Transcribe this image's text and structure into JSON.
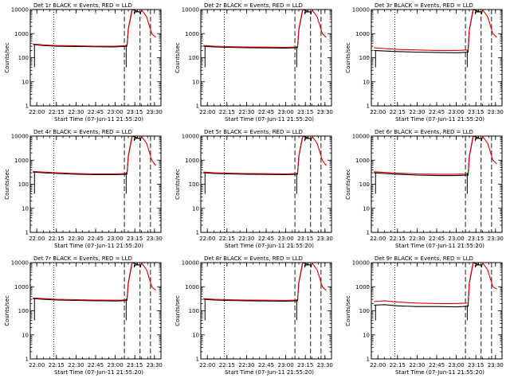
{
  "chart_data": [
    {
      "type": "line",
      "title": "Det 1r BLACK = Events, RED = LLD",
      "xlabel": "Start Time (07-Jun-11 21:55:20)",
      "ylabel": "Counts/sec",
      "ylim": [
        1,
        10000
      ],
      "yscale": "log",
      "xlim": [
        "21:55",
        "23:35"
      ],
      "xticks": [
        "22:00",
        "22:15",
        "22:30",
        "22:45",
        "23:00",
        "23:15",
        "23:30"
      ],
      "yticks": [
        "1",
        "10",
        "100",
        "1000",
        "10000"
      ],
      "series": [
        {
          "color": "#000000",
          "x": [
            "21:57",
            "22:05",
            "22:15",
            "22:30",
            "22:45",
            "23:00",
            "23:05",
            "23:09",
            "23:10",
            "23:13",
            "23:18",
            "23:20"
          ],
          "values": [
            350,
            320,
            300,
            290,
            285,
            280,
            290,
            300,
            1500,
            10000,
            8000,
            8000
          ]
        },
        {
          "color": "#e00000",
          "x": [
            "21:57",
            "22:05",
            "22:15",
            "22:30",
            "22:45",
            "23:00",
            "23:05",
            "23:09",
            "23:10",
            "23:13",
            "23:20",
            "23:24",
            "23:28",
            "23:31"
          ],
          "values": [
            370,
            340,
            320,
            310,
            300,
            300,
            310,
            320,
            1600,
            11000,
            10000,
            5000,
            1000,
            700
          ]
        }
      ]
    },
    {
      "type": "line",
      "title": "Det 2r BLACK = Events, RED = LLD",
      "xlabel": "Start Time (07-Jun-11 21:55:20)",
      "ylabel": "Counts/sec",
      "ylim": [
        1,
        10000
      ],
      "yscale": "log",
      "xlim": [
        "21:55",
        "23:35"
      ],
      "xticks": [
        "22:00",
        "22:15",
        "22:30",
        "22:45",
        "23:00",
        "23:15",
        "23:30"
      ],
      "yticks": [
        "1",
        "10",
        "100",
        "1000",
        "10000"
      ],
      "series": [
        {
          "color": "#000000",
          "x": [
            "21:57",
            "22:05",
            "22:15",
            "22:30",
            "22:45",
            "23:00",
            "23:05",
            "23:09",
            "23:10",
            "23:13",
            "23:18",
            "23:20"
          ],
          "values": [
            300,
            280,
            270,
            260,
            255,
            250,
            255,
            260,
            1400,
            10000,
            8000,
            8000
          ]
        },
        {
          "color": "#e00000",
          "x": [
            "21:57",
            "22:05",
            "22:15",
            "22:30",
            "22:45",
            "23:00",
            "23:05",
            "23:09",
            "23:10",
            "23:13",
            "23:20",
            "23:24",
            "23:28",
            "23:31"
          ],
          "values": [
            320,
            300,
            290,
            280,
            275,
            270,
            275,
            280,
            1500,
            11000,
            10000,
            5000,
            1000,
            700
          ]
        }
      ]
    },
    {
      "type": "line",
      "title": "Det 3r BLACK = Events, RED = LLD",
      "xlabel": "Start Time (07-Jun-11 21:55:20)",
      "ylabel": "Counts/sec",
      "ylim": [
        1,
        10000
      ],
      "yscale": "log",
      "xlim": [
        "21:55",
        "23:35"
      ],
      "xticks": [
        "22:00",
        "22:15",
        "22:30",
        "22:45",
        "23:00",
        "23:15",
        "23:30"
      ],
      "yticks": [
        "1",
        "10",
        "100",
        "1000",
        "10000"
      ],
      "series": [
        {
          "color": "#000000",
          "x": [
            "21:57",
            "22:05",
            "22:15",
            "22:30",
            "22:45",
            "23:00",
            "23:05",
            "23:09",
            "23:10",
            "23:13",
            "23:18",
            "23:20"
          ],
          "values": [
            200,
            190,
            180,
            170,
            165,
            160,
            165,
            170,
            1400,
            10000,
            8000,
            8000
          ]
        },
        {
          "color": "#e00000",
          "x": [
            "21:57",
            "22:05",
            "22:15",
            "22:30",
            "22:45",
            "23:00",
            "23:05",
            "23:09",
            "23:10",
            "23:13",
            "23:20",
            "23:24",
            "23:28",
            "23:31"
          ],
          "values": [
            260,
            240,
            220,
            210,
            200,
            200,
            205,
            210,
            1500,
            11000,
            10000,
            5000,
            1000,
            700
          ]
        }
      ]
    },
    {
      "type": "line",
      "title": "Det 4r BLACK = Events, RED = LLD",
      "xlabel": "Start Time (07-Jun-11 21:55:20)",
      "ylabel": "Counts/sec",
      "ylim": [
        1,
        10000
      ],
      "yscale": "log",
      "xlim": [
        "21:55",
        "23:35"
      ],
      "xticks": [
        "22:00",
        "22:15",
        "22:30",
        "22:45",
        "23:00",
        "23:15",
        "23:30"
      ],
      "yticks": [
        "1",
        "10",
        "100",
        "1000",
        "10000"
      ],
      "series": [
        {
          "color": "#000000",
          "x": [
            "21:57",
            "22:05",
            "22:15",
            "22:30",
            "22:45",
            "23:00",
            "23:05",
            "23:09",
            "23:10",
            "23:13",
            "23:18",
            "23:20"
          ],
          "values": [
            320,
            300,
            280,
            260,
            250,
            250,
            255,
            260,
            1400,
            10000,
            8000,
            8000
          ]
        },
        {
          "color": "#e00000",
          "x": [
            "21:57",
            "22:05",
            "22:15",
            "22:30",
            "22:45",
            "23:00",
            "23:05",
            "23:09",
            "23:10",
            "23:13",
            "23:20",
            "23:24",
            "23:28",
            "23:31"
          ],
          "values": [
            340,
            320,
            300,
            280,
            270,
            270,
            275,
            280,
            1500,
            11000,
            10000,
            5000,
            1000,
            600
          ]
        }
      ]
    },
    {
      "type": "line",
      "title": "Det 5r BLACK = Events, RED = LLD",
      "xlabel": "Start Time (07-Jun-11 21:55:20)",
      "ylabel": "Counts/sec",
      "ylim": [
        1,
        10000
      ],
      "yscale": "log",
      "xlim": [
        "21:55",
        "23:35"
      ],
      "xticks": [
        "22:00",
        "22:15",
        "22:30",
        "22:45",
        "23:00",
        "23:15",
        "23:30"
      ],
      "yticks": [
        "1",
        "10",
        "100",
        "1000",
        "10000"
      ],
      "series": [
        {
          "color": "#000000",
          "x": [
            "21:57",
            "22:05",
            "22:15",
            "22:30",
            "22:45",
            "23:00",
            "23:05",
            "23:09",
            "23:10",
            "23:13",
            "23:18",
            "23:20"
          ],
          "values": [
            300,
            280,
            270,
            260,
            255,
            250,
            255,
            260,
            1400,
            10000,
            8000,
            8000
          ]
        },
        {
          "color": "#e00000",
          "x": [
            "21:57",
            "22:05",
            "22:15",
            "22:30",
            "22:45",
            "23:00",
            "23:05",
            "23:09",
            "23:10",
            "23:13",
            "23:20",
            "23:24",
            "23:28",
            "23:31"
          ],
          "values": [
            320,
            300,
            290,
            280,
            275,
            270,
            275,
            280,
            1500,
            11000,
            10000,
            5000,
            1000,
            600
          ]
        }
      ]
    },
    {
      "type": "line",
      "title": "Det 6r BLACK = Events, RED = LLD",
      "xlabel": "Start Time (07-Jun-11 21:55:20)",
      "ylabel": "Counts/sec",
      "ylim": [
        1,
        10000
      ],
      "yscale": "log",
      "xlim": [
        "21:55",
        "23:35"
      ],
      "xticks": [
        "22:00",
        "22:15",
        "22:30",
        "22:45",
        "23:00",
        "23:15",
        "23:30"
      ],
      "yticks": [
        "1",
        "10",
        "100",
        "1000",
        "10000"
      ],
      "series": [
        {
          "color": "#000000",
          "x": [
            "21:57",
            "22:05",
            "22:15",
            "22:30",
            "22:45",
            "23:00",
            "23:05",
            "23:09",
            "23:10",
            "23:13",
            "23:18",
            "23:20"
          ],
          "values": [
            300,
            280,
            260,
            240,
            230,
            230,
            235,
            240,
            1400,
            10000,
            8000,
            8000
          ]
        },
        {
          "color": "#e00000",
          "x": [
            "21:57",
            "22:05",
            "22:15",
            "22:30",
            "22:45",
            "23:00",
            "23:05",
            "23:09",
            "23:10",
            "23:13",
            "23:20",
            "23:24",
            "23:28",
            "23:31"
          ],
          "values": [
            330,
            310,
            290,
            270,
            260,
            260,
            265,
            270,
            1500,
            11000,
            10000,
            5000,
            1000,
            700
          ]
        }
      ]
    },
    {
      "type": "line",
      "title": "Det 7r BLACK = Events, RED = LLD",
      "xlabel": "Start Time (07-Jun-11 21:55:20)",
      "ylabel": "Counts/sec",
      "ylim": [
        1,
        10000
      ],
      "yscale": "log",
      "xlim": [
        "21:55",
        "23:35"
      ],
      "xticks": [
        "22:00",
        "22:15",
        "22:30",
        "22:45",
        "23:00",
        "23:15",
        "23:30"
      ],
      "yticks": [
        "1",
        "10",
        "100",
        "1000",
        "10000"
      ],
      "series": [
        {
          "color": "#000000",
          "x": [
            "21:57",
            "22:05",
            "22:15",
            "22:30",
            "22:45",
            "23:00",
            "23:05",
            "23:09",
            "23:10",
            "23:13",
            "23:18",
            "23:20"
          ],
          "values": [
            320,
            300,
            280,
            270,
            260,
            255,
            260,
            270,
            1400,
            10000,
            8000,
            8000
          ]
        },
        {
          "color": "#e00000",
          "x": [
            "21:57",
            "22:05",
            "22:15",
            "22:30",
            "22:45",
            "23:00",
            "23:05",
            "23:09",
            "23:10",
            "23:13",
            "23:20",
            "23:24",
            "23:28",
            "23:31"
          ],
          "values": [
            340,
            320,
            300,
            290,
            280,
            275,
            280,
            290,
            1500,
            11000,
            10000,
            5000,
            1000,
            700
          ]
        }
      ]
    },
    {
      "type": "line",
      "title": "Det 8r BLACK = Events, RED = LLD",
      "xlabel": "Start Time (07-Jun-11 21:55:20)",
      "ylabel": "Counts/sec",
      "ylim": [
        1,
        10000
      ],
      "yscale": "log",
      "xlim": [
        "21:55",
        "23:35"
      ],
      "xticks": [
        "22:00",
        "22:15",
        "22:30",
        "22:45",
        "23:00",
        "23:15",
        "23:30"
      ],
      "yticks": [
        "1",
        "10",
        "100",
        "1000",
        "10000"
      ],
      "series": [
        {
          "color": "#000000",
          "x": [
            "21:57",
            "22:05",
            "22:15",
            "22:30",
            "22:45",
            "23:00",
            "23:05",
            "23:09",
            "23:10",
            "23:13",
            "23:18",
            "23:20"
          ],
          "values": [
            300,
            280,
            270,
            260,
            255,
            250,
            255,
            260,
            1400,
            10000,
            8000,
            8000
          ]
        },
        {
          "color": "#e00000",
          "x": [
            "21:57",
            "22:05",
            "22:15",
            "22:30",
            "22:45",
            "23:00",
            "23:05",
            "23:09",
            "23:10",
            "23:13",
            "23:20",
            "23:24",
            "23:28",
            "23:31"
          ],
          "values": [
            320,
            300,
            290,
            280,
            275,
            270,
            275,
            280,
            1500,
            11000,
            10000,
            5000,
            1000,
            700
          ]
        }
      ]
    },
    {
      "type": "line",
      "title": "Det 9r BLACK = Events, RED = LLD",
      "xlabel": "Start Time (07-Jun-11 21:55:20)",
      "ylabel": "Counts/sec",
      "ylim": [
        1,
        10000
      ],
      "yscale": "log",
      "xlim": [
        "21:55",
        "23:35"
      ],
      "xticks": [
        "22:00",
        "22:15",
        "22:30",
        "22:45",
        "23:00",
        "23:15",
        "23:30"
      ],
      "yticks": [
        "1",
        "10",
        "100",
        "1000",
        "10000"
      ],
      "series": [
        {
          "color": "#000000",
          "x": [
            "21:57",
            "22:05",
            "22:15",
            "22:30",
            "22:45",
            "23:00",
            "23:05",
            "23:09",
            "23:10",
            "23:13",
            "23:18",
            "23:20"
          ],
          "values": [
            170,
            180,
            160,
            150,
            150,
            145,
            150,
            155,
            1400,
            10000,
            8000,
            8000
          ]
        },
        {
          "color": "#e00000",
          "x": [
            "21:57",
            "22:05",
            "22:15",
            "22:30",
            "22:45",
            "23:00",
            "23:05",
            "23:09",
            "23:10",
            "23:13",
            "23:20",
            "23:24",
            "23:28",
            "23:31"
          ],
          "values": [
            240,
            260,
            230,
            210,
            200,
            200,
            205,
            210,
            1500,
            11000,
            10000,
            5000,
            1000,
            800
          ]
        }
      ]
    }
  ]
}
